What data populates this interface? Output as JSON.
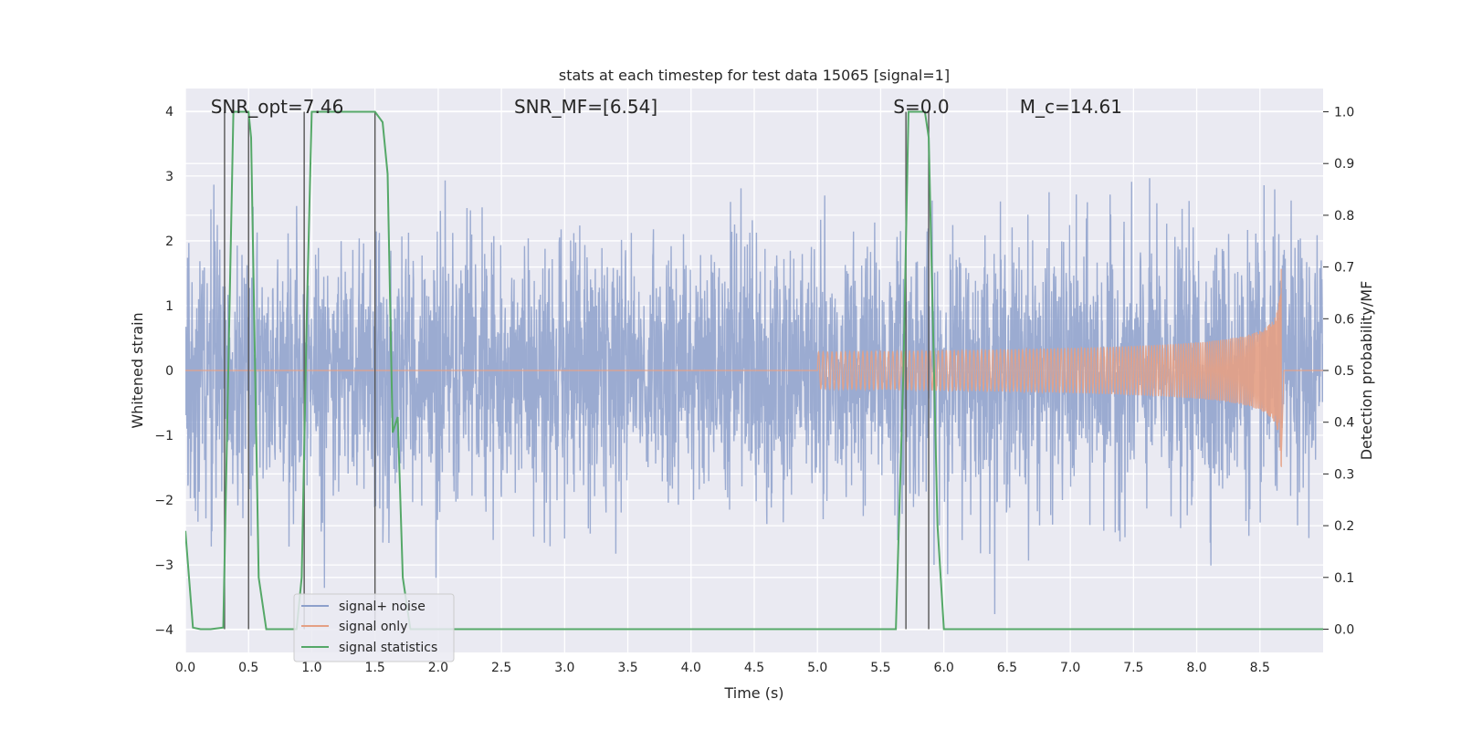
{
  "chart_data": {
    "type": "line",
    "title": "stats at each timestep for test data 15065 [signal=1]",
    "xlabel": "Time (s)",
    "ylabel": "Whitened strain",
    "y2label": "Detection probability/MF",
    "xlim": [
      0.0,
      9.0
    ],
    "ylim": [
      -4.35,
      4.35
    ],
    "y2lim": [
      -0.045,
      1.045
    ],
    "x_ticks": [
      "0.0",
      "0.5",
      "1.0",
      "1.5",
      "2.0",
      "2.5",
      "3.0",
      "3.5",
      "4.0",
      "4.5",
      "5.0",
      "5.5",
      "6.0",
      "6.5",
      "7.0",
      "7.5",
      "8.0",
      "8.5"
    ],
    "y_ticks": [
      "−4",
      "−3",
      "−2",
      "−1",
      "0",
      "1",
      "2",
      "3",
      "4"
    ],
    "y2_ticks": [
      "0.0",
      "0.1",
      "0.2",
      "0.3",
      "0.4",
      "0.5",
      "0.6",
      "0.7",
      "0.8",
      "0.9",
      "1.0"
    ],
    "grid": true,
    "legend_position": "lower-left",
    "annotations": [
      {
        "text": "SNR_opt=7.46",
        "x": 0.2
      },
      {
        "text": "SNR_MF=[6.54]",
        "x": 2.6
      },
      {
        "text": "S=0.0",
        "x": 5.6
      },
      {
        "text": "M_c=14.61",
        "x": 6.6
      }
    ],
    "vlines": [
      0.31,
      0.5,
      0.94,
      1.5,
      5.7,
      5.88
    ],
    "series": [
      {
        "name": "signal+ noise",
        "color": "#8da0cb",
        "type": "noise",
        "std": 1.0,
        "end_x": 9.0
      },
      {
        "name": "signal only",
        "color": "#e5a084",
        "type": "chirp",
        "start_x": 5.0,
        "merger_x": 8.67,
        "peak_amplitude": 1.6
      },
      {
        "name": "signal statistics",
        "color": "#55a868",
        "axis": "right",
        "x": [
          0.0,
          0.06,
          0.12,
          0.2,
          0.3,
          0.38,
          0.43,
          0.5,
          0.52,
          0.58,
          0.64,
          0.7,
          0.8,
          0.88,
          0.92,
          0.96,
          1.0,
          1.1,
          1.2,
          1.3,
          1.4,
          1.5,
          1.56,
          1.6,
          1.64,
          1.68,
          1.72,
          1.78,
          1.9,
          2.5,
          3.5,
          4.5,
          5.0,
          5.5,
          5.62,
          5.68,
          5.72,
          5.78,
          5.85,
          5.88,
          5.95,
          6.0,
          6.5,
          7.0,
          7.5,
          8.0,
          8.5,
          9.0
        ],
        "y": [
          0.19,
          0.003,
          0.0,
          0.0,
          0.003,
          1.0,
          1.0,
          1.0,
          0.95,
          0.1,
          0.0,
          0.0,
          0.0,
          0.0,
          0.1,
          0.6,
          1.0,
          1.0,
          1.0,
          1.0,
          1.0,
          1.0,
          0.98,
          0.88,
          0.38,
          0.41,
          0.1,
          0.0,
          0.0,
          0.0,
          0.0,
          0.0,
          0.0,
          0.0,
          0.0,
          0.5,
          1.0,
          1.0,
          1.0,
          0.95,
          0.2,
          0.0,
          0.0,
          0.0,
          0.0,
          0.0,
          0.0,
          0.0
        ]
      }
    ]
  }
}
